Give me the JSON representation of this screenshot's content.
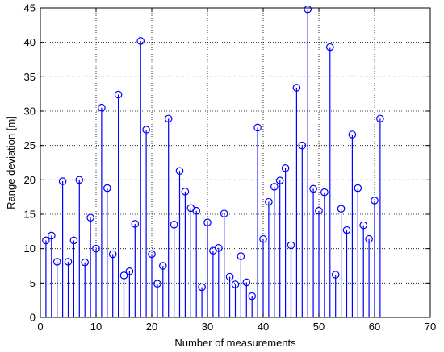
{
  "chart_data": {
    "type": "stem",
    "xlabel": "Number of measurements",
    "ylabel": "Range deviation [m]",
    "xlim": [
      0,
      70
    ],
    "ylim": [
      0,
      45
    ],
    "x_ticks": [
      0,
      10,
      20,
      30,
      40,
      50,
      60,
      70
    ],
    "y_ticks": [
      0,
      5,
      10,
      15,
      20,
      25,
      30,
      35,
      40,
      45
    ],
    "grid": true,
    "grid_style": "dotted",
    "marker": "circle-open",
    "color": "#0000ff",
    "series": [
      {
        "x": [
          1,
          2,
          3,
          4,
          5,
          6,
          7,
          8,
          9,
          10,
          11,
          12,
          13,
          14,
          15,
          16,
          17,
          18,
          19,
          20,
          21,
          22,
          23,
          24,
          25,
          26,
          27,
          28,
          29,
          30,
          31,
          32,
          33,
          34,
          35,
          36,
          37,
          38,
          39,
          40,
          41,
          42,
          43,
          44,
          45,
          46,
          47,
          48,
          49,
          50,
          51,
          52,
          53,
          54,
          55,
          56,
          57,
          58,
          59,
          60,
          61
        ],
        "y": [
          11.2,
          11.9,
          8.1,
          19.8,
          8.1,
          11.2,
          20.0,
          8.0,
          14.5,
          10.0,
          30.5,
          18.8,
          9.2,
          32.4,
          6.1,
          6.7,
          13.6,
          40.2,
          27.3,
          9.2,
          4.9,
          7.5,
          28.9,
          13.5,
          21.3,
          18.3,
          15.9,
          15.5,
          4.4,
          13.8,
          9.7,
          10.1,
          15.1,
          5.9,
          4.8,
          8.9,
          5.1,
          3.1,
          27.6,
          11.4,
          16.8,
          19.0,
          19.9,
          21.7,
          10.5,
          33.4,
          25.0,
          44.8,
          18.7,
          15.5,
          18.2,
          39.3,
          6.2,
          15.8,
          12.7,
          26.6,
          18.8,
          13.4,
          11.4,
          17.0,
          28.9
        ]
      }
    ]
  }
}
